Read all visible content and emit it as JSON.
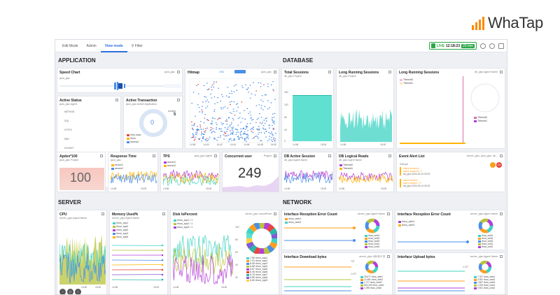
{
  "brand": {
    "name": "WhaTap"
  },
  "toolbar": {
    "tabs": [
      "Edit Mode",
      "Admin",
      "View mode"
    ],
    "filter_label": "Filter",
    "live_label": "LIVE",
    "time": "12:18:23",
    "range": "20 min"
  },
  "sections": {
    "application": "APPLICATION",
    "database": "DATABASE",
    "server": "SERVER",
    "network": "NETWORK"
  },
  "colors": {
    "accent": "#2f6fe0",
    "live": "#2ba84a",
    "teal": "#3fd3c3",
    "purple": "#b23fd6",
    "olive": "#b8c43a",
    "alert": "#ff9f1c"
  },
  "panels": {
    "speed_chart": {
      "title": "Speed Chart",
      "meta": "java_pjsc",
      "sub": "java_pjsc"
    },
    "hitmap": {
      "title": "Hitmap",
      "meta": "java_pjsc",
      "badge": "4932",
      "ticks": [
        "14:36",
        "14:40",
        "14:42",
        "14:44",
        "14:46",
        "14:48",
        "14:50",
        "15:00"
      ]
    },
    "active_status": {
      "title": "Active Status",
      "sub": "java_pjsc   Agent",
      "rows": [
        "METHOD",
        "SQL",
        "HTTPC",
        "DBC",
        "SOCKET"
      ]
    },
    "active_transaction": {
      "title": "Active Transaction",
      "sub": "java_pjsc   Active Application",
      "active_label": "Active",
      "active_value": "5",
      "donut_value": "0",
      "legend": [
        "Very slow",
        "Slow",
        "Normal"
      ]
    },
    "apdex": {
      "title": "Apdex*100",
      "sub": "java_pjsc   Project",
      "value": "100"
    },
    "response_time": {
      "title": "Response Time",
      "sub": "java_pjsc",
      "legend": [
        "server1",
        "server2"
      ],
      "ticks": [
        "14:36",
        "14:44",
        "14:52",
        "15:00"
      ]
    },
    "tps": {
      "title": "TPS",
      "meta": "java_pjsc   Agent",
      "legend": [
        "server1",
        "server2"
      ],
      "ticks": [
        "14:36",
        "14:44",
        "14:52",
        "15:00"
      ]
    },
    "concurrent_user": {
      "title": "Concurrent user",
      "meta": "Project",
      "value": "249"
    },
    "total_sessions": {
      "title": "Total Sessions",
      "sub": "db_pjsc   Project",
      "yticks": [
        "160",
        "120",
        "80",
        "40",
        "0"
      ],
      "ticks": [
        "14:36",
        "14:44",
        "14:52",
        "15:00"
      ]
    },
    "long_running_1": {
      "title": "Long Running Sessions",
      "sub": "db_pjsc   Project",
      "ticks": [
        "14:36",
        "14:44",
        "14:52",
        "15:00"
      ]
    },
    "long_running_2": {
      "title": "Long Running Sessions",
      "meta": "db_pjsc   Agent Name",
      "legend": [
        "Tibero#0",
        "Tibero#1"
      ]
    },
    "db_active_session": {
      "title": "DB Active Session",
      "sub": "db_pjsc   Agent Name",
      "ticks": [
        "14:36",
        "14:44",
        "14:52",
        "15:00"
      ]
    },
    "db_logical_reads": {
      "title": "DB Logical Reads",
      "sub": "db_pjsc   Agent Name",
      "legend": [
        "Tibero#0",
        "Tibero#1"
      ],
      "ticks": [
        "14:36",
        "14:44",
        "14:52",
        "15:00"
      ]
    },
    "event_alert": {
      "title": "Event Alert List",
      "meta": "server_pjsc, java_pjsc, db...",
      "time": "3:00 pm",
      "items": [
        "active sessions",
        "active sessions : 3",
        "active session",
        "active session : 5"
      ],
      "item_meta": "db_pjsc   2024-03-14 09:23",
      "count": "13"
    },
    "cpu": {
      "title": "CPU",
      "sub": "server_pjsc   Agent Name",
      "ticks": [
        "14:36",
        "14:44",
        "14:52",
        "15:00"
      ]
    },
    "memory": {
      "title": "Memory Used%",
      "sub": "server_pjsc   Agent Name",
      "legend": [
        "rfocs_sys1",
        "rfocs_sys2",
        "rfocs_sys3",
        "rfocs_sys4",
        "rfocs_sys5"
      ],
      "ticks": [
        "14:36",
        "14:44",
        "14:52",
        "15:00"
      ]
    },
    "disk_io": {
      "title": "Disk IoPercent",
      "meta": "server_pjsc   mountPoint",
      "legend": [
        "rfocs_sys1 / 1",
        "rfocs_sys2 / 1",
        "rfocs_sys3 / 1"
      ],
      "yticks": [
        "100",
        "80",
        "60",
        "40",
        "20",
        "0"
      ],
      "ticks": [
        "14:36",
        "14:44",
        "14:52",
        "15:00"
      ],
      "list": [
        "7.80 rfocs_sys1",
        "7.01 rfocs_sys2",
        "6.95 rfocs_sys3",
        "6.80 rfocs_sys4",
        "6.67 rfocs_sys5",
        "6.45 rfocs_sys6",
        "6.10 rfocs_sys7",
        "5.89 rfocs_sys8",
        "5.60 rfocs_sys9"
      ]
    },
    "if_err_1": {
      "title": "Interface Reception Error Count",
      "meta": "server_pjsc   Agent Name",
      "legend": [
        "rfocs_web1",
        "rfocs_web2"
      ],
      "ticks": [
        "14:36",
        "14:44",
        "14:52",
        "15:00"
      ],
      "list": [
        "rfocs_web1",
        "rfocs_web2",
        "rfocs_web3",
        "rfocs_cmk1",
        "rfocs_cmk2"
      ]
    },
    "if_err_2": {
      "title": "Interface Reception Error Count",
      "meta": "server_pjsc   Agent Name",
      "legend": [
        "rfocs_web1",
        "rfocs_web2"
      ],
      "ticks": [
        "14:36",
        "14:44",
        "14:52",
        "15:00"
      ],
      "list": [
        "rfocs_web1",
        "rfocs_web2",
        "rfocs_web3",
        "rfocs_cmk1",
        "rfocs_cmk2"
      ]
    },
    "if_download": {
      "title": "Interface Download bytes",
      "meta": "server_pjsc   네트워크 명",
      "legend": [
        "rfocs_web1",
        "rfocs_web2"
      ],
      "list": [
        "33.677 rfocs_web1",
        "12.481 rfocs_web2",
        "1.717 rfocs_web3",
        "619.292 rfocs_cmk1",
        "1.298 rfocs_cmk2"
      ],
      "ymax": "727",
      "ymid": "1.077"
    },
    "if_upload": {
      "title": "Interface Upload bytes",
      "meta": "server_pjsc   Agent Name",
      "legend": [
        "rfocs_web1",
        "rfocs_web2"
      ],
      "list": [
        "7.767 rfocs_web1",
        "3.281 rfocs_web2",
        "2.467 rfocs_web3",
        "1.025 rfocs_cmk1",
        "0.931 rfocs_cmk2"
      ],
      "ymax": "1.077"
    }
  }
}
